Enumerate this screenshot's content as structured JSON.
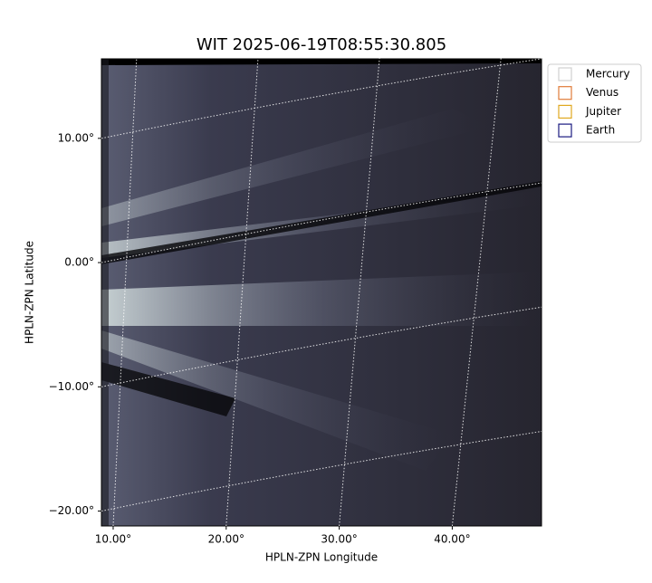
{
  "chart_data": {
    "type": "image",
    "title": "WIT 2025-06-19T08:55:30.805",
    "x_label": "HPLN-ZPN Longitude",
    "y_label": "HPLN-ZPN Latitude",
    "xlim": [
      8.96,
      47.9
    ],
    "ylim": [
      -21.2,
      16.4
    ],
    "xticks": [
      {
        "value": 10,
        "label": "10.00°"
      },
      {
        "value": 20,
        "label": "20.00°"
      },
      {
        "value": 30,
        "label": "30.00°"
      },
      {
        "value": 40,
        "label": "40.00°"
      }
    ],
    "yticks": [
      {
        "value": 10,
        "label": "10.00°"
      },
      {
        "value": 0,
        "label": "0.00°"
      },
      {
        "value": -10,
        "label": "−10.00°"
      },
      {
        "value": -20,
        "label": "−20.00°"
      }
    ],
    "grid": true,
    "legend": "upper right outside",
    "series": [
      {
        "name": "Mercury",
        "color": "#d0d0d0"
      },
      {
        "name": "Venus",
        "color": "#e07b39"
      },
      {
        "name": "Jupiter",
        "color": "#e0a820"
      },
      {
        "name": "Earth",
        "color": "#1a1a80"
      }
    ]
  }
}
